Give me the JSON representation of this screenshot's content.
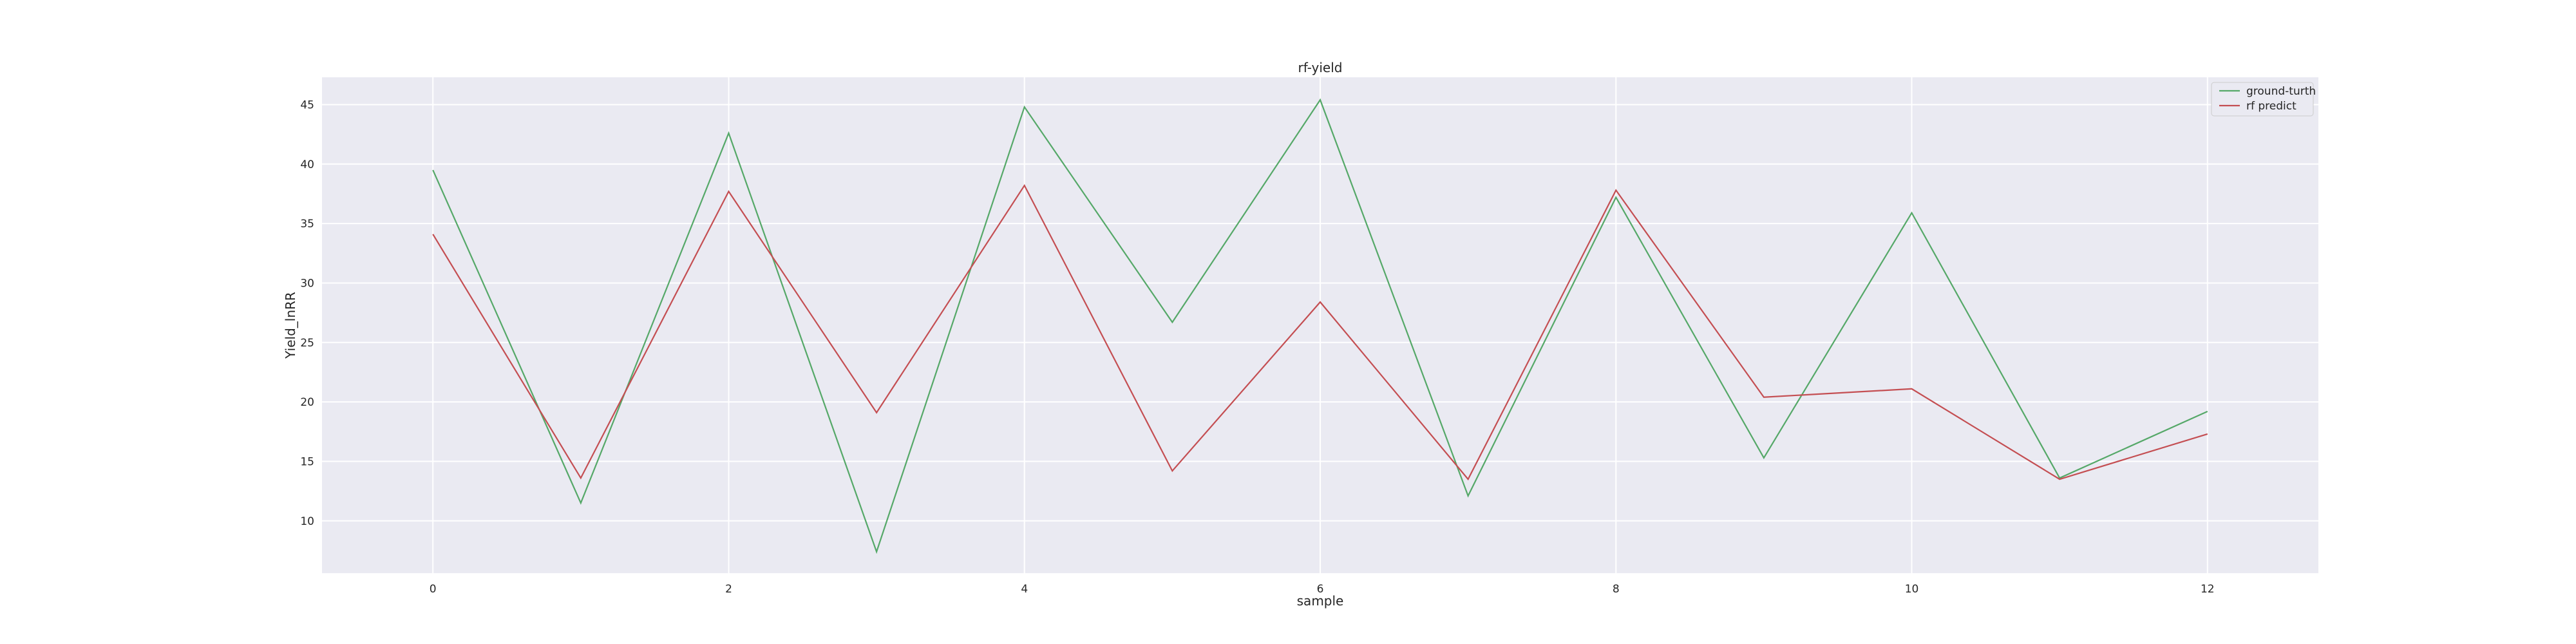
{
  "chart_data": {
    "type": "line",
    "title": "rf-yield",
    "xlabel": "sample",
    "ylabel": "Yield_lnRR",
    "x": [
      0,
      1,
      2,
      3,
      4,
      5,
      6,
      7,
      8,
      9,
      10,
      11,
      12
    ],
    "xticks": [
      0,
      2,
      4,
      6,
      8,
      10,
      12
    ],
    "yticks": [
      10,
      15,
      20,
      25,
      30,
      35,
      40,
      45
    ],
    "xlim": [
      -0.75,
      12.75
    ],
    "ylim": [
      5.6,
      47.3
    ],
    "grid": true,
    "legend_position": "top-right",
    "background": "#eaeaf2",
    "series": [
      {
        "name": "ground-turth",
        "color": "#55a868",
        "values": [
          39.5,
          11.5,
          42.6,
          7.4,
          44.8,
          26.7,
          45.4,
          12.1,
          37.2,
          15.3,
          35.9,
          13.6,
          19.2
        ]
      },
      {
        "name": "rf predict",
        "color": "#c44e52",
        "values": [
          34.1,
          13.6,
          37.7,
          19.1,
          38.2,
          14.2,
          28.4,
          13.5,
          37.8,
          20.4,
          21.1,
          13.5,
          17.3
        ]
      }
    ]
  }
}
